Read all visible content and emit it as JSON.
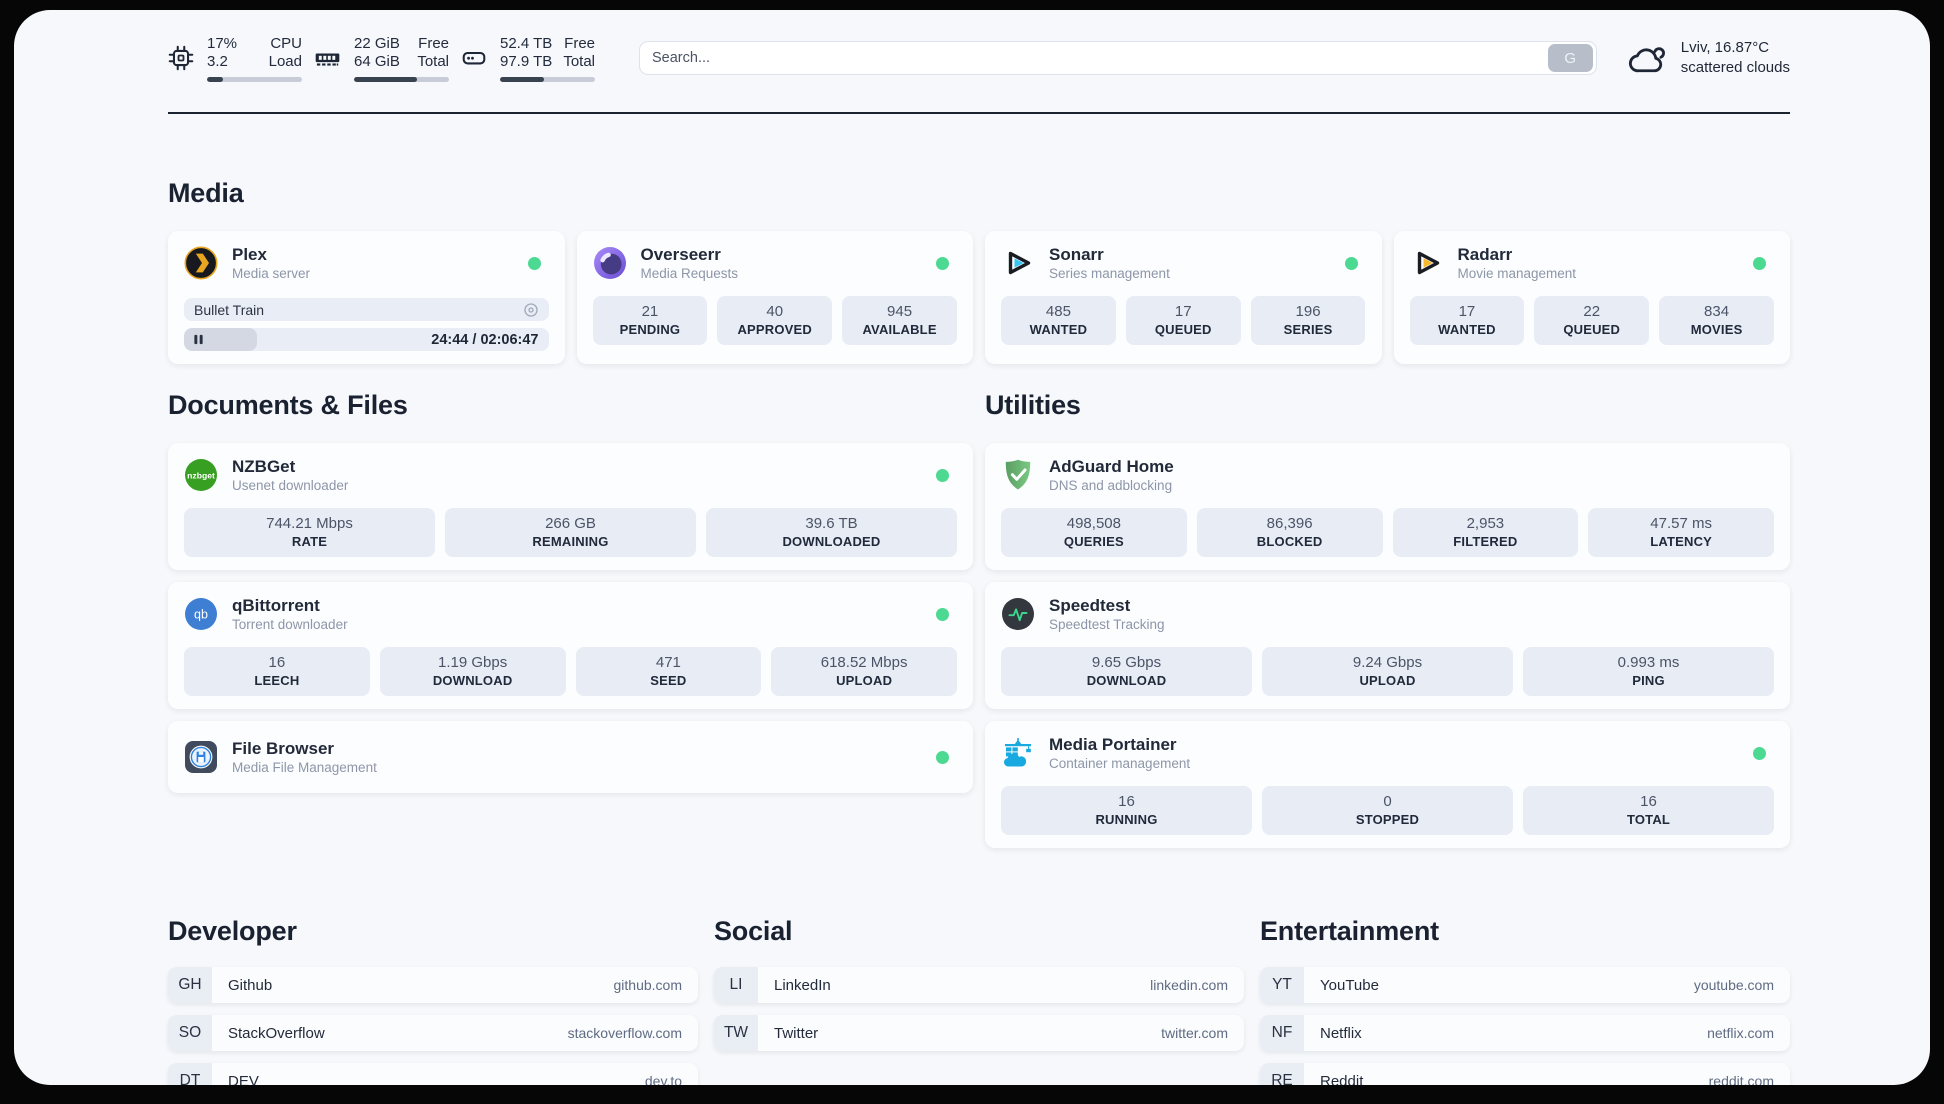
{
  "topbar": {
    "cpu": {
      "value_top": "17%",
      "value_bottom": "3.2",
      "label_top": "CPU",
      "label_bottom": "Load",
      "progress_pct": 17
    },
    "memory": {
      "value_top": "22 GiB",
      "value_bottom": "64 GiB",
      "label_top": "Free",
      "label_bottom": "Total",
      "progress_pct": 66
    },
    "disk": {
      "value_top": "52.4 TB",
      "value_bottom": "97.9 TB",
      "label_top": "Free",
      "label_bottom": "Total",
      "progress_pct": 46
    },
    "search": {
      "placeholder": "Search...",
      "button_label": "G"
    },
    "weather": {
      "location": "Lviv, 16.87°C",
      "condition": "scattered clouds"
    }
  },
  "sections": {
    "media": {
      "title": "Media",
      "cards": [
        {
          "name": "Plex",
          "subtitle": "Media server",
          "status": "online",
          "now_playing": {
            "title": "Bullet Train",
            "time": "24:44 / 02:06:47",
            "progress_pct": 20
          }
        },
        {
          "name": "Overseerr",
          "subtitle": "Media Requests",
          "status": "online",
          "stats": [
            {
              "value": "21",
              "label": "PENDING"
            },
            {
              "value": "40",
              "label": "APPROVED"
            },
            {
              "value": "945",
              "label": "AVAILABLE"
            }
          ]
        },
        {
          "name": "Sonarr",
          "subtitle": "Series management",
          "status": "online",
          "stats": [
            {
              "value": "485",
              "label": "WANTED"
            },
            {
              "value": "17",
              "label": "QUEUED"
            },
            {
              "value": "196",
              "label": "SERIES"
            }
          ]
        },
        {
          "name": "Radarr",
          "subtitle": "Movie management",
          "status": "online",
          "stats": [
            {
              "value": "17",
              "label": "WANTED"
            },
            {
              "value": "22",
              "label": "QUEUED"
            },
            {
              "value": "834",
              "label": "MOVIES"
            }
          ]
        }
      ]
    },
    "documents": {
      "title": "Documents & Files",
      "cards": [
        {
          "name": "NZBGet",
          "subtitle": "Usenet downloader",
          "status": "online",
          "stats": [
            {
              "value": "744.21 Mbps",
              "label": "RATE"
            },
            {
              "value": "266 GB",
              "label": "REMAINING"
            },
            {
              "value": "39.6 TB",
              "label": "DOWNLOADED"
            }
          ]
        },
        {
          "name": "qBittorrent",
          "subtitle": "Torrent downloader",
          "status": "online",
          "stats": [
            {
              "value": "16",
              "label": "LEECH"
            },
            {
              "value": "1.19 Gbps",
              "label": "DOWNLOAD"
            },
            {
              "value": "471",
              "label": "SEED"
            },
            {
              "value": "618.52 Mbps",
              "label": "UPLOAD"
            }
          ]
        },
        {
          "name": "File Browser",
          "subtitle": "Media File Management",
          "status": "online"
        }
      ]
    },
    "utilities": {
      "title": "Utilities",
      "cards": [
        {
          "name": "AdGuard Home",
          "subtitle": "DNS and adblocking",
          "stats": [
            {
              "value": "498,508",
              "label": "QUERIES"
            },
            {
              "value": "86,396",
              "label": "BLOCKED"
            },
            {
              "value": "2,953",
              "label": "FILTERED"
            },
            {
              "value": "47.57 ms",
              "label": "LATENCY"
            }
          ]
        },
        {
          "name": "Speedtest",
          "subtitle": "Speedtest Tracking",
          "stats": [
            {
              "value": "9.65 Gbps",
              "label": "DOWNLOAD"
            },
            {
              "value": "9.24 Gbps",
              "label": "UPLOAD"
            },
            {
              "value": "0.993 ms",
              "label": "PING"
            }
          ]
        },
        {
          "name": "Media Portainer",
          "subtitle": "Container management",
          "status": "online",
          "stats": [
            {
              "value": "16",
              "label": "RUNNING"
            },
            {
              "value": "0",
              "label": "STOPPED"
            },
            {
              "value": "16",
              "label": "TOTAL"
            }
          ]
        }
      ]
    },
    "bookmarks": [
      {
        "title": "Developer",
        "links": [
          {
            "abbr": "GH",
            "name": "Github",
            "url": "github.com"
          },
          {
            "abbr": "SO",
            "name": "StackOverflow",
            "url": "stackoverflow.com"
          },
          {
            "abbr": "DT",
            "name": "DEV",
            "url": "dev.to"
          }
        ]
      },
      {
        "title": "Social",
        "links": [
          {
            "abbr": "LI",
            "name": "LinkedIn",
            "url": "linkedin.com"
          },
          {
            "abbr": "TW",
            "name": "Twitter",
            "url": "twitter.com"
          }
        ]
      },
      {
        "title": "Entertainment",
        "links": [
          {
            "abbr": "YT",
            "name": "YouTube",
            "url": "youtube.com"
          },
          {
            "abbr": "NF",
            "name": "Netflix",
            "url": "netflix.com"
          },
          {
            "abbr": "RE",
            "name": "Reddit",
            "url": "reddit.com"
          }
        ]
      }
    ]
  },
  "colors": {
    "status_online": "#4cd992",
    "plex_accent": "#e8a520",
    "sonarr_accent": "#35c5f4",
    "radarr_accent": "#f7b72e",
    "nzbget_accent": "#379f21",
    "qbittorrent_accent": "#3e7ed3",
    "adguard_accent": "#68b279",
    "speedtest_accent": "#3fd68f",
    "portainer_accent": "#18a9e0",
    "panel_background": "#f6f8fb",
    "stat_box_background": "#e8ecf5"
  }
}
